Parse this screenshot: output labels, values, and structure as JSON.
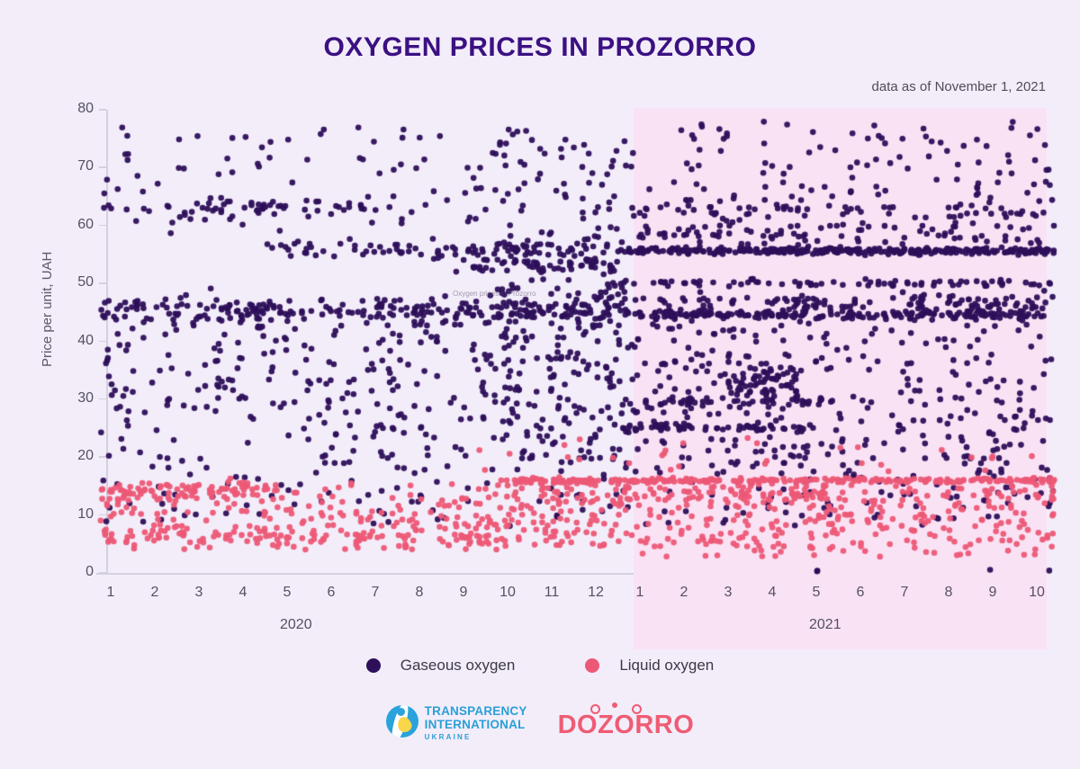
{
  "page": {
    "background": "#f3edfa"
  },
  "header": {
    "title": "OXYGEN PRICES IN PROZORRO",
    "subtitle": "data as of November 1, 2021"
  },
  "chart_data": {
    "type": "scatter",
    "title": "OXYGEN PRICES IN PROZORRO",
    "subtitle": "data as of November 1, 2021",
    "xlabel": "",
    "ylabel": "Price per unit, UAH",
    "ylim": [
      0,
      80
    ],
    "y_ticks": [
      0,
      10,
      20,
      30,
      40,
      50,
      60,
      70,
      80
    ],
    "x_tick_labels": [
      "1",
      "2",
      "3",
      "4",
      "5",
      "6",
      "7",
      "8",
      "9",
      "10",
      "11",
      "12",
      "1",
      "2",
      "3",
      "4",
      "5",
      "6",
      "7",
      "8",
      "9",
      "10"
    ],
    "year_groups": [
      {
        "label": "2020",
        "first_month_index": 1,
        "last_month_index": 12
      },
      {
        "label": "2021",
        "first_month_index": 13,
        "last_month_index": 22
      }
    ],
    "grid": false,
    "legend_position": "bottom",
    "highlight_region": {
      "label": "2021",
      "from_month_index": 12.85,
      "to_month_index": 22.22,
      "color": "#fae2f5"
    },
    "watermark": "Oxygen prices in Prozorro",
    "point_style": {
      "radius": 3.3,
      "opacity": 0.95
    },
    "seed": 20211101,
    "series": [
      {
        "name": "Gaseous oxygen",
        "color": "#2d0f5a",
        "clusters": [
          {
            "m_from": 0.75,
            "m_to": 9.6,
            "dist": "uniform",
            "y_min": 19,
            "y_max": 43,
            "count": 215
          },
          {
            "m_from": 0.75,
            "m_to": 12.6,
            "dist": "uniform",
            "y_min": 8,
            "y_max": 19,
            "count": 80
          },
          {
            "m_from": 0.75,
            "m_to": 9.6,
            "dist": "uniform",
            "y_min": 58,
            "y_max": 77,
            "count": 85
          },
          {
            "m_from": 0.75,
            "m_to": 12.6,
            "dist": "normal",
            "y_mean": 45.3,
            "y_sd": 1.3,
            "count": 255
          },
          {
            "m_from": 0.75,
            "m_to": 7.0,
            "dist": "normal",
            "y_mean": 63.0,
            "y_sd": 0.7,
            "count": 48
          },
          {
            "m_from": 4.5,
            "m_to": 12.6,
            "dist": "normal",
            "y_mean": 55.8,
            "y_sd": 0.7,
            "count": 90
          },
          {
            "m_from": 8.8,
            "m_to": 12.6,
            "dist": "normal",
            "y_mean": 53.2,
            "y_sd": 0.8,
            "count": 55
          },
          {
            "m_from": 9.6,
            "m_to": 12.6,
            "dist": "uniform",
            "y_min": 19,
            "y_max": 50,
            "count": 200
          },
          {
            "m_from": 9.6,
            "m_to": 12.6,
            "dist": "uniform",
            "y_min": 50,
            "y_max": 77,
            "count": 90
          },
          {
            "m_from": 12.6,
            "m_to": 22.4,
            "dist": "normal",
            "y_mean": 55.6,
            "y_sd": 0.28,
            "count": 310
          },
          {
            "m_from": 12.6,
            "m_to": 22.4,
            "dist": "uniform",
            "y_min": 56.5,
            "y_max": 60,
            "count": 70
          },
          {
            "m_from": 12.6,
            "m_to": 22.4,
            "dist": "normal",
            "y_mean": 50.1,
            "y_sd": 0.35,
            "count": 80
          },
          {
            "m_from": 12.6,
            "m_to": 22.4,
            "dist": "normal",
            "y_mean": 44.6,
            "y_sd": 0.4,
            "count": 200
          },
          {
            "m_from": 12.6,
            "m_to": 22.4,
            "dist": "normal",
            "y_mean": 46.6,
            "y_sd": 0.9,
            "count": 130
          },
          {
            "m_from": 12.6,
            "m_to": 22.4,
            "dist": "uniform",
            "y_min": 17,
            "y_max": 44,
            "count": 330
          },
          {
            "m_from": 12.6,
            "m_to": 17.0,
            "dist": "normal",
            "y_mean": 25.0,
            "y_sd": 0.3,
            "count": 55
          },
          {
            "m_from": 12.6,
            "m_to": 17.5,
            "dist": "normal",
            "y_mean": 29.6,
            "y_sd": 0.35,
            "count": 45
          },
          {
            "m_from": 14.8,
            "m_to": 16.6,
            "dist": "normal",
            "y_mean": 33.0,
            "y_sd": 1.6,
            "count": 55
          },
          {
            "m_from": 12.6,
            "m_to": 22.4,
            "dist": "uniform",
            "y_min": 58,
            "y_max": 78,
            "count": 150
          },
          {
            "m_from": 12.6,
            "m_to": 22.4,
            "dist": "normal",
            "y_mean": 62.6,
            "y_sd": 0.7,
            "count": 55
          },
          {
            "m_from": 12.6,
            "m_to": 22.4,
            "dist": "uniform",
            "y_min": 8,
            "y_max": 17,
            "count": 70
          },
          {
            "m_from": 16.95,
            "m_to": 17.25,
            "dist": "uniform",
            "y_min": 0.2,
            "y_max": 0.9,
            "count": 2
          },
          {
            "m_from": 20.85,
            "m_to": 21.0,
            "dist": "uniform",
            "y_min": 0.3,
            "y_max": 0.8,
            "count": 1
          },
          {
            "m_from": 22.05,
            "m_to": 22.3,
            "dist": "uniform",
            "y_min": 0.3,
            "y_max": 0.8,
            "count": 1
          }
        ]
      },
      {
        "name": "Liquid oxygen",
        "color": "#ec5976",
        "clusters": [
          {
            "m_from": 0.75,
            "m_to": 9.8,
            "dist": "uniform",
            "y_min": 4,
            "y_max": 15.5,
            "count": 200
          },
          {
            "m_from": 0.75,
            "m_to": 4.6,
            "dist": "normal",
            "y_mean": 13.9,
            "y_sd": 0.9,
            "count": 85
          },
          {
            "m_from": 0.75,
            "m_to": 9.8,
            "dist": "normal",
            "y_mean": 6.8,
            "y_sd": 1.2,
            "count": 90
          },
          {
            "m_from": 9.8,
            "m_to": 12.6,
            "dist": "uniform",
            "y_min": 4.5,
            "y_max": 15.5,
            "count": 110
          },
          {
            "m_from": 9.8,
            "m_to": 12.6,
            "dist": "normal",
            "y_mean": 15.9,
            "y_sd": 0.25,
            "count": 65
          },
          {
            "m_from": 9.3,
            "m_to": 12.6,
            "dist": "uniform",
            "y_min": 17,
            "y_max": 24,
            "count": 8
          },
          {
            "m_from": 12.6,
            "m_to": 22.4,
            "dist": "normal",
            "y_mean": 15.95,
            "y_sd": 0.22,
            "count": 210
          },
          {
            "m_from": 12.6,
            "m_to": 17.2,
            "dist": "normal",
            "y_mean": 13.6,
            "y_sd": 0.5,
            "count": 55
          },
          {
            "m_from": 12.6,
            "m_to": 22.4,
            "dist": "uniform",
            "y_min": 4.5,
            "y_max": 15.2,
            "count": 270
          },
          {
            "m_from": 12.6,
            "m_to": 22.4,
            "dist": "uniform",
            "y_min": 16.8,
            "y_max": 23.5,
            "count": 22
          },
          {
            "m_from": 12.6,
            "m_to": 22.4,
            "dist": "uniform",
            "y_min": 2.8,
            "y_max": 4.5,
            "count": 28
          }
        ]
      }
    ]
  },
  "legend": {
    "items": [
      {
        "label": "Gaseous oxygen",
        "color": "#2d0f5a"
      },
      {
        "label": "Liquid oxygen",
        "color": "#ec5976"
      }
    ]
  },
  "footer": {
    "transparency_logo": {
      "line1": "TRANSPARENCY",
      "line2": "INTERNATIONAL",
      "line3": "UKRAINE"
    },
    "dozorro_logo": {
      "text": "DOZORRO"
    }
  }
}
